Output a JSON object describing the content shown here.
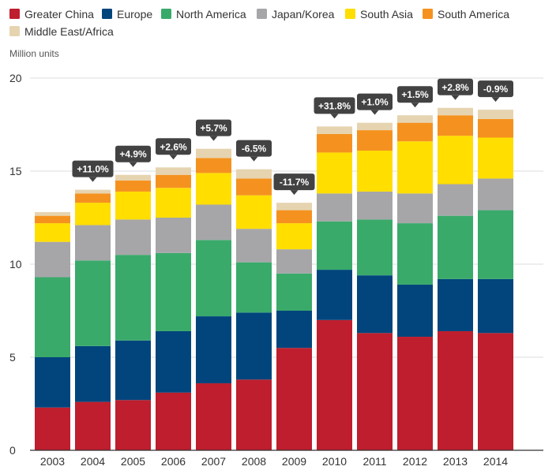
{
  "chart_data": {
    "type": "bar",
    "stacked": true,
    "title": "",
    "xlabel": "",
    "ylabel": "Million units",
    "ylim": [
      0,
      20
    ],
    "yticks": [
      0,
      5,
      10,
      15,
      20
    ],
    "grid": true,
    "legend_position": "top-left",
    "categories": [
      "2003",
      "2004",
      "2005",
      "2006",
      "2007",
      "2008",
      "2009",
      "2010",
      "2011",
      "2012",
      "2013",
      "2014"
    ],
    "series": [
      {
        "name": "Greater China",
        "color": "#be1e2d",
        "values": [
          2.3,
          2.6,
          2.7,
          3.1,
          3.6,
          3.8,
          5.5,
          7.0,
          6.3,
          6.1,
          6.4,
          6.3
        ]
      },
      {
        "name": "Europe",
        "color": "#01457c",
        "values": [
          2.7,
          3.0,
          3.2,
          3.3,
          3.6,
          3.6,
          2.0,
          2.7,
          3.1,
          2.8,
          2.8,
          2.9
        ]
      },
      {
        "name": "North America",
        "color": "#3aaa6b",
        "values": [
          4.3,
          4.6,
          4.6,
          4.2,
          4.1,
          2.7,
          2.0,
          2.6,
          3.0,
          3.3,
          3.4,
          3.7
        ]
      },
      {
        "name": "Japan/Korea",
        "color": "#a6a6a9",
        "values": [
          1.9,
          1.9,
          1.9,
          1.9,
          1.9,
          1.8,
          1.3,
          1.5,
          1.5,
          1.6,
          1.7,
          1.7
        ]
      },
      {
        "name": "South Asia",
        "color": "#ffde00",
        "values": [
          1.0,
          1.2,
          1.5,
          1.6,
          1.7,
          1.8,
          1.4,
          2.2,
          2.2,
          2.8,
          2.6,
          2.2
        ]
      },
      {
        "name": "South America",
        "color": "#f5921f",
        "values": [
          0.4,
          0.5,
          0.6,
          0.7,
          0.8,
          0.9,
          0.7,
          1.0,
          1.1,
          1.0,
          1.1,
          1.0
        ]
      },
      {
        "name": "Middle East/Africa",
        "color": "#e6d4b0",
        "values": [
          0.2,
          0.2,
          0.3,
          0.4,
          0.5,
          0.5,
          0.4,
          0.4,
          0.4,
          0.4,
          0.4,
          0.5
        ]
      }
    ],
    "annotations": [
      "",
      "+11.0%",
      "+4.9%",
      "+2.6%",
      "+5.7%",
      "-6.5%",
      "-11.7%",
      "+31.8%",
      "+1.0%",
      "+1.5%",
      "+2.8%",
      "-0.9%"
    ]
  }
}
